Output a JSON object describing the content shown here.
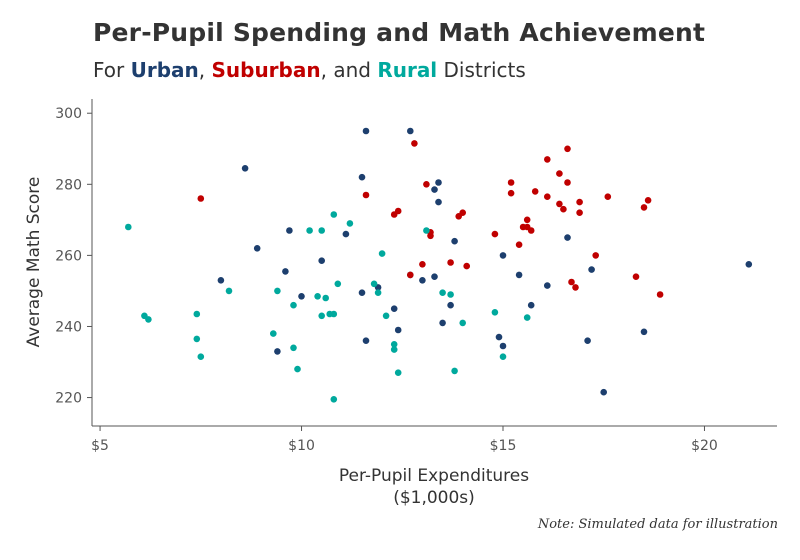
{
  "chart_data": {
    "type": "scatter",
    "title": "Per-Pupil Spending and Math Achievement",
    "subtitle": {
      "prefix": "For ",
      "urban": "Urban",
      "sep1": ", ",
      "suburban": "Suburban",
      "sep2": ", and ",
      "rural": "Rural",
      "suffix": " Districts"
    },
    "xlabel_line1": "Per-Pupil Expenditures",
    "xlabel_line2": "($1,000s)",
    "ylabel": "Average Math Score",
    "note": "Note: Simulated data for illustration",
    "xlim": [
      4.8,
      21.8
    ],
    "ylim": [
      212,
      304
    ],
    "x_ticks": [
      5,
      10,
      15,
      20
    ],
    "x_tick_labels": [
      "$5",
      "$10",
      "$15",
      "$20"
    ],
    "y_ticks": [
      220,
      240,
      260,
      280,
      300
    ],
    "y_tick_labels": [
      "220",
      "240",
      "260",
      "280",
      "300"
    ],
    "colors": {
      "urban": "#1d3f6e",
      "suburban": "#c00000",
      "rural": "#00a99d",
      "axis": "#555555"
    },
    "series": [
      {
        "name": "Urban",
        "color": "#1d3f6e",
        "points": [
          [
            8.6,
            284.5
          ],
          [
            8.9,
            262
          ],
          [
            8.0,
            253
          ],
          [
            9.4,
            233
          ],
          [
            9.6,
            255.5
          ],
          [
            9.7,
            267
          ],
          [
            10.0,
            248.5
          ],
          [
            10.5,
            258.5
          ],
          [
            11.1,
            266
          ],
          [
            11.5,
            282
          ],
          [
            11.6,
            295
          ],
          [
            11.5,
            249.5
          ],
          [
            11.6,
            236
          ],
          [
            11.9,
            251
          ],
          [
            12.3,
            245
          ],
          [
            12.4,
            239
          ],
          [
            12.7,
            295
          ],
          [
            12.7,
            254.5
          ],
          [
            13.0,
            253
          ],
          [
            13.3,
            254
          ],
          [
            13.3,
            278.5
          ],
          [
            13.4,
            280.5
          ],
          [
            13.4,
            275
          ],
          [
            13.5,
            241
          ],
          [
            13.7,
            246
          ],
          [
            13.8,
            264
          ],
          [
            14.9,
            237
          ],
          [
            15.0,
            234.5
          ],
          [
            15.0,
            260
          ],
          [
            15.4,
            254.5
          ],
          [
            15.7,
            246
          ],
          [
            16.1,
            251.5
          ],
          [
            16.6,
            265
          ],
          [
            17.1,
            236
          ],
          [
            17.2,
            256
          ],
          [
            17.5,
            221.5
          ],
          [
            18.5,
            238.5
          ],
          [
            21.1,
            257.5
          ]
        ]
      },
      {
        "name": "Suburban",
        "color": "#c00000",
        "points": [
          [
            7.5,
            276
          ],
          [
            11.6,
            277
          ],
          [
            12.3,
            271.5
          ],
          [
            12.4,
            272.5
          ],
          [
            12.7,
            254.5
          ],
          [
            12.8,
            291.5
          ],
          [
            13.0,
            257.5
          ],
          [
            13.1,
            280
          ],
          [
            13.2,
            266.5
          ],
          [
            13.2,
            265.5
          ],
          [
            13.7,
            258
          ],
          [
            13.9,
            271
          ],
          [
            14.0,
            272
          ],
          [
            14.1,
            257
          ],
          [
            14.8,
            266
          ],
          [
            15.2,
            280.5
          ],
          [
            15.2,
            277.5
          ],
          [
            15.4,
            263
          ],
          [
            15.5,
            268
          ],
          [
            15.6,
            270
          ],
          [
            15.6,
            268
          ],
          [
            15.7,
            267
          ],
          [
            15.8,
            278
          ],
          [
            16.1,
            287
          ],
          [
            16.1,
            276.5
          ],
          [
            16.4,
            274.5
          ],
          [
            16.4,
            283
          ],
          [
            16.5,
            273
          ],
          [
            16.6,
            290
          ],
          [
            16.6,
            280.5
          ],
          [
            16.7,
            252.5
          ],
          [
            16.8,
            251
          ],
          [
            16.9,
            272
          ],
          [
            16.9,
            275
          ],
          [
            17.3,
            260
          ],
          [
            17.6,
            276.5
          ],
          [
            18.3,
            254
          ],
          [
            18.5,
            273.5
          ],
          [
            18.6,
            275.5
          ],
          [
            18.9,
            249
          ]
        ]
      },
      {
        "name": "Rural",
        "color": "#00a99d",
        "points": [
          [
            5.7,
            268
          ],
          [
            6.1,
            243
          ],
          [
            6.2,
            242
          ],
          [
            7.4,
            243.5
          ],
          [
            7.4,
            236.5
          ],
          [
            7.5,
            231.5
          ],
          [
            8.2,
            250
          ],
          [
            9.3,
            238
          ],
          [
            9.4,
            250
          ],
          [
            9.8,
            234
          ],
          [
            9.8,
            246
          ],
          [
            9.9,
            228
          ],
          [
            10.2,
            267
          ],
          [
            10.4,
            248.5
          ],
          [
            10.5,
            243
          ],
          [
            10.5,
            267
          ],
          [
            10.6,
            248
          ],
          [
            10.7,
            243.5
          ],
          [
            10.8,
            243.5
          ],
          [
            10.8,
            271.5
          ],
          [
            10.8,
            219.5
          ],
          [
            10.9,
            252
          ],
          [
            11.2,
            269
          ],
          [
            11.8,
            252
          ],
          [
            11.9,
            249.5
          ],
          [
            12.0,
            260.5
          ],
          [
            12.1,
            243
          ],
          [
            12.3,
            235
          ],
          [
            12.3,
            233.5
          ],
          [
            12.4,
            227
          ],
          [
            13.1,
            267
          ],
          [
            13.5,
            249.5
          ],
          [
            13.7,
            249
          ],
          [
            13.8,
            227.5
          ],
          [
            14.0,
            241
          ],
          [
            14.8,
            244
          ],
          [
            15.0,
            231.5
          ],
          [
            15.6,
            242.5
          ]
        ]
      }
    ]
  }
}
